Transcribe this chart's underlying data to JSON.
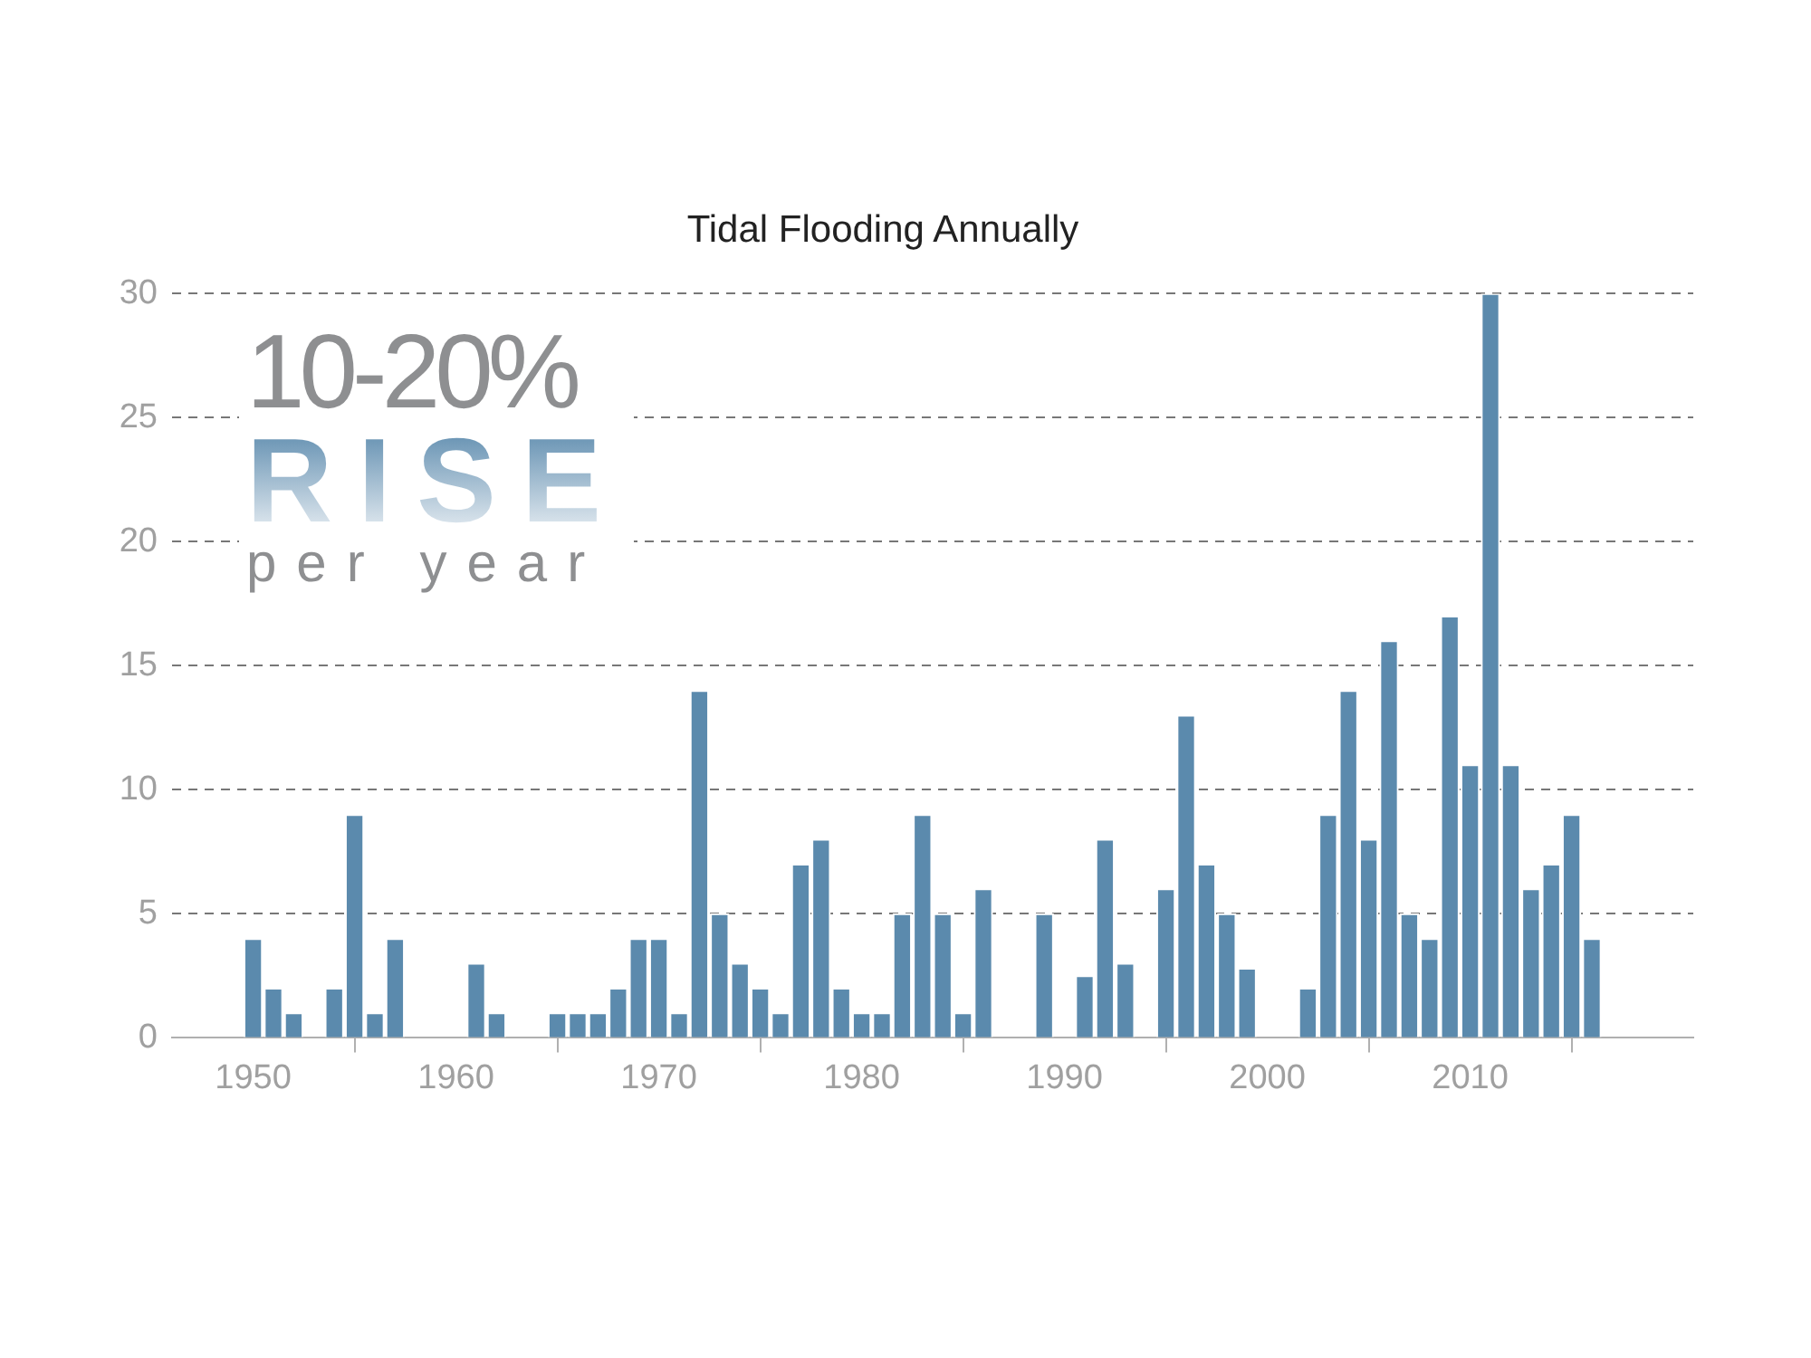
{
  "chart_data": {
    "type": "bar",
    "title": "Tidal Flooding Annually",
    "annotations": [
      "10-20%",
      "RISE",
      "per year"
    ],
    "x": [
      1950,
      1951,
      1952,
      1953,
      1954,
      1955,
      1956,
      1957,
      1958,
      1959,
      1960,
      1961,
      1962,
      1963,
      1964,
      1965,
      1966,
      1967,
      1968,
      1969,
      1970,
      1971,
      1972,
      1973,
      1974,
      1975,
      1976,
      1977,
      1978,
      1979,
      1980,
      1981,
      1982,
      1983,
      1984,
      1985,
      1986,
      1987,
      1988,
      1989,
      1990,
      1991,
      1992,
      1993,
      1994,
      1995,
      1996,
      1997,
      1998,
      1999,
      2000,
      2001,
      2002,
      2003,
      2004,
      2005,
      2006,
      2007,
      2008,
      2009,
      2010,
      2011,
      2012,
      2013,
      2014,
      2015,
      2016
    ],
    "values": [
      4,
      2,
      1,
      0,
      2,
      9,
      1,
      4,
      0,
      0,
      0,
      3,
      1,
      0,
      0,
      1,
      1,
      1,
      2,
      4,
      4,
      1,
      14,
      5,
      3,
      2,
      1,
      7,
      8,
      2,
      1,
      1,
      5,
      9,
      5,
      1,
      6,
      0,
      0,
      5,
      0,
      2.5,
      8,
      3,
      0,
      6,
      13,
      7,
      5,
      2.8,
      0,
      0,
      2,
      9,
      14,
      8,
      16,
      5,
      4,
      17,
      11,
      30,
      11,
      6,
      7,
      9,
      4
    ],
    "color": "#5b8aad",
    "xlim": [
      1946,
      2021
    ],
    "xticks": [
      1950,
      1960,
      1970,
      1980,
      1990,
      2000,
      2010
    ],
    "ylim": [
      0,
      30
    ],
    "yticks": [
      0,
      5,
      10,
      15,
      20,
      25,
      30
    ],
    "grid": "y",
    "legend": false
  }
}
